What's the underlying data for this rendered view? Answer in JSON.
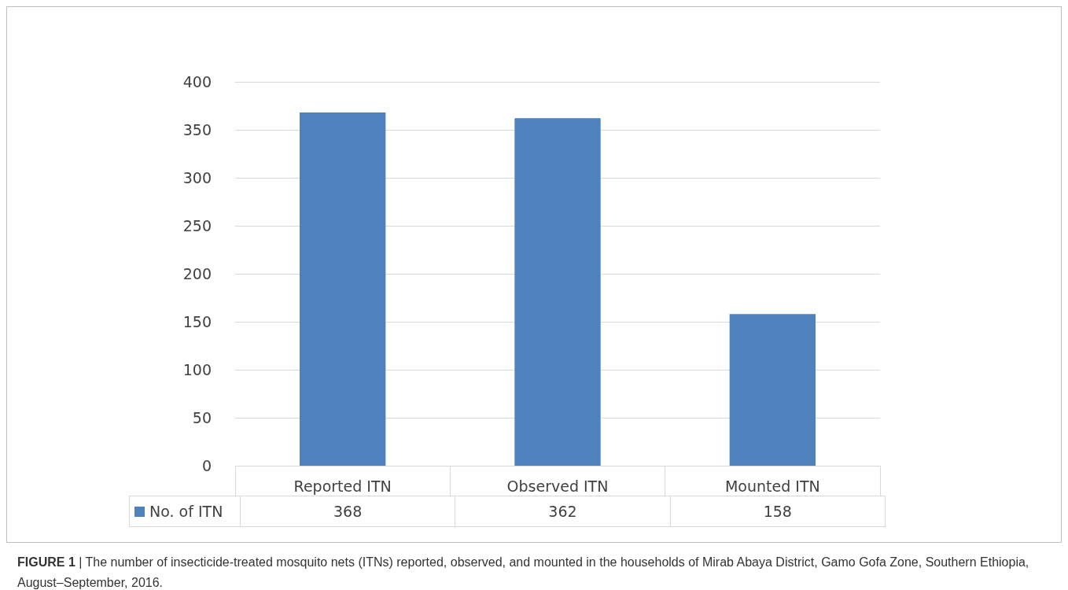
{
  "chart_data": {
    "type": "bar",
    "categories": [
      "Reported ITN",
      "Observed ITN",
      "Mounted ITN"
    ],
    "series": [
      {
        "name": "No. of ITN",
        "color": "#4f81bd",
        "values": [
          368,
          362,
          158
        ]
      }
    ],
    "ylim": [
      0,
      400
    ],
    "yticks": [
      0,
      50,
      100,
      150,
      200,
      250,
      300,
      350,
      400
    ],
    "grid": "y",
    "legend": "bottom",
    "data_labels": true,
    "annotations": [
      "FIGURE 1 | The number of insecticide-treated mosquito nets (ITNs) reported, observed, and mounted in the households of Mirab Abaya District, Gamo Gofa Zone, Southern Ethiopia, August–September, 2016."
    ]
  }
}
